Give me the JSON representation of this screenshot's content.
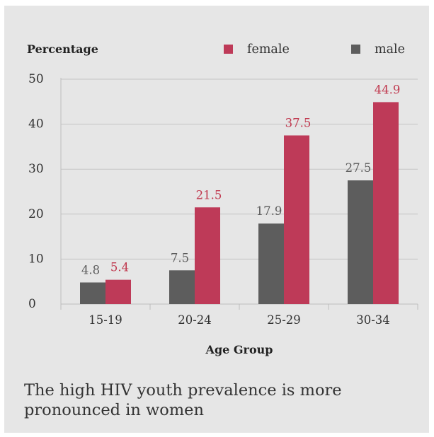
{
  "chart_data": {
    "type": "bar",
    "ylabel": "Percentage",
    "xlabel": "Age Group",
    "categories": [
      "15-19",
      "20-24",
      "25-29",
      "30-34"
    ],
    "series": [
      {
        "name": "male",
        "values": [
          4.8,
          7.5,
          17.9,
          27.5
        ],
        "color": "#5d5d5d",
        "label_color": "#5d5d5d"
      },
      {
        "name": "female",
        "values": [
          5.4,
          21.5,
          37.5,
          44.9
        ],
        "color": "#be3a58",
        "label_color": "#c0394f"
      }
    ],
    "legend_order": [
      "female",
      "male"
    ],
    "yticks": [
      0,
      10,
      20,
      30,
      40,
      50
    ],
    "ylim": [
      0,
      50
    ],
    "grid": true,
    "legend_position": "top-right"
  },
  "caption": "The high HIV youth prevalence is more pronounced in women"
}
